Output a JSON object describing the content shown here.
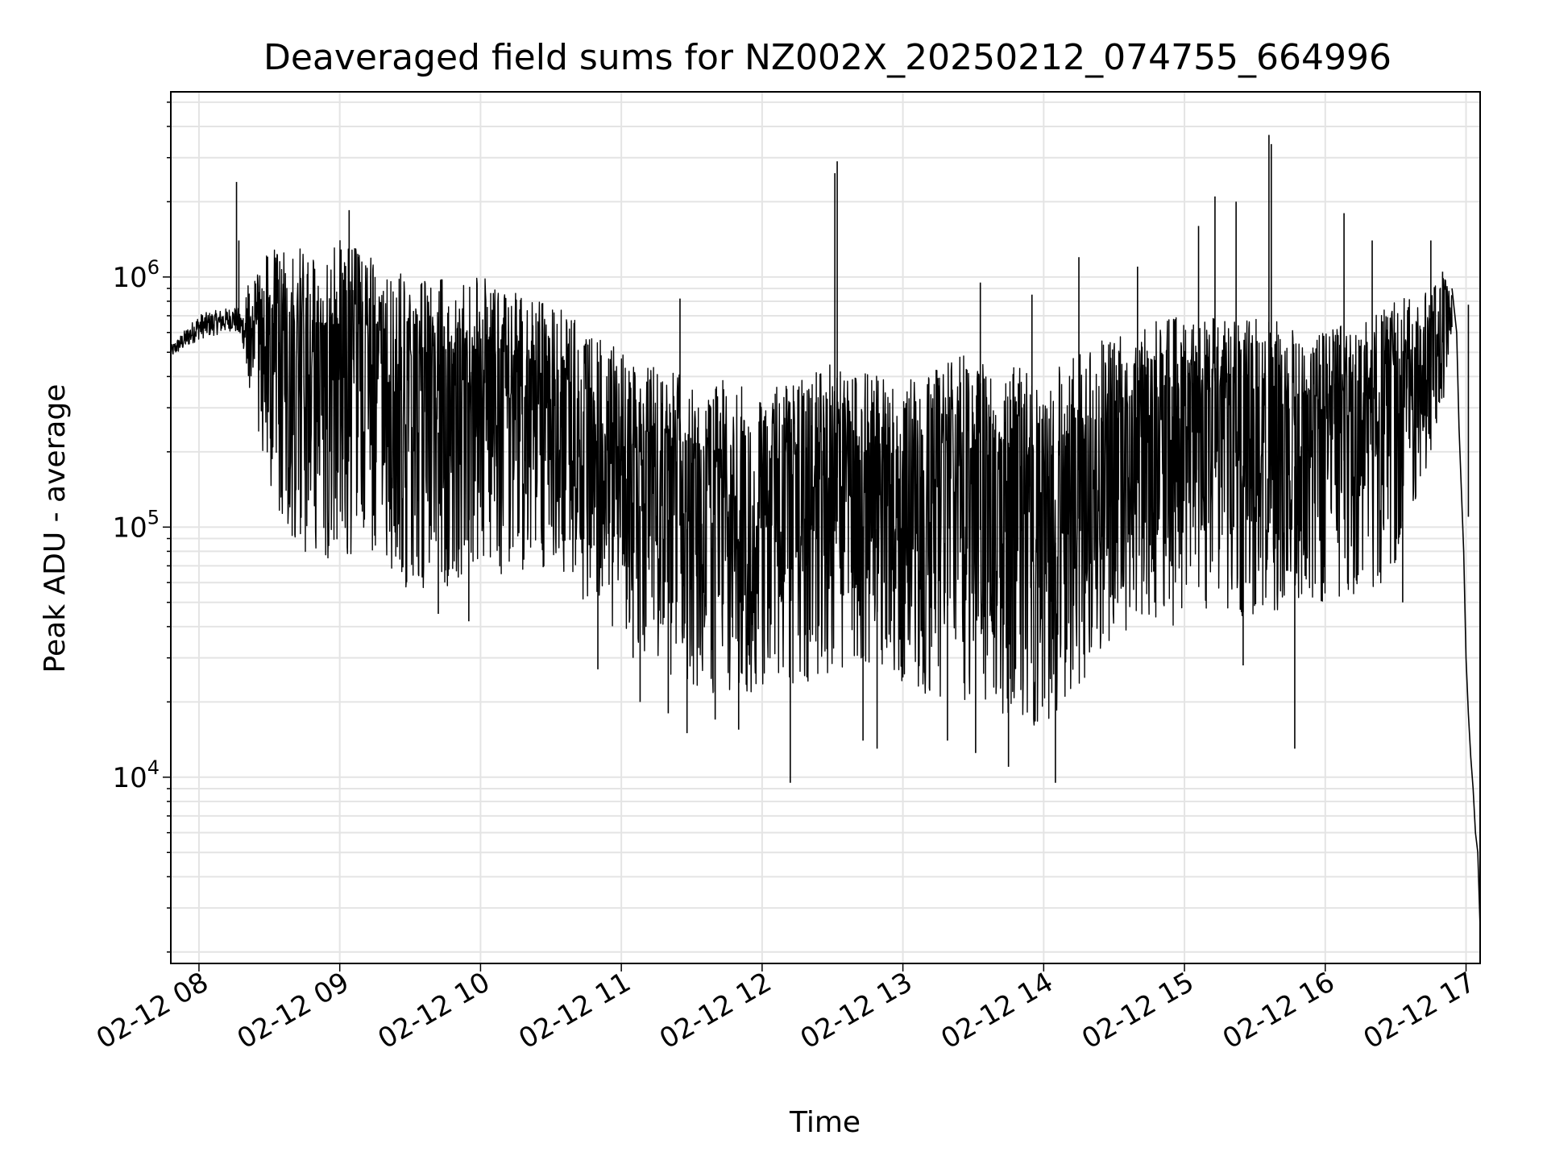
{
  "chart_data": {
    "type": "line",
    "title": "Deaveraged field sums for NZ002X_20250212_074755_664996",
    "xlabel": "Time",
    "ylabel": "Peak ADU - average",
    "yscale": "log",
    "ylim": [
      1800,
      5500000
    ],
    "xlim": [
      "2025-02-12 07:48",
      "2025-02-12 17:06"
    ],
    "grid": true,
    "x_ticks": [
      {
        "value": "2025-02-12 08:00",
        "label": "02-12 08"
      },
      {
        "value": "2025-02-12 09:00",
        "label": "02-12 09"
      },
      {
        "value": "2025-02-12 10:00",
        "label": "02-12 10"
      },
      {
        "value": "2025-02-12 11:00",
        "label": "02-12 11"
      },
      {
        "value": "2025-02-12 12:00",
        "label": "02-12 12"
      },
      {
        "value": "2025-02-12 13:00",
        "label": "02-12 13"
      },
      {
        "value": "2025-02-12 14:00",
        "label": "02-12 14"
      },
      {
        "value": "2025-02-12 15:00",
        "label": "02-12 15"
      },
      {
        "value": "2025-02-12 16:00",
        "label": "02-12 16"
      },
      {
        "value": "2025-02-12 17:00",
        "label": "02-12 17"
      }
    ],
    "y_ticks": [
      {
        "value": 10000,
        "base": "10",
        "exp": "4"
      },
      {
        "value": 100000,
        "base": "10",
        "exp": "5"
      },
      {
        "value": 1000000,
        "base": "10",
        "exp": "6"
      }
    ],
    "series": [
      {
        "color": "#000000",
        "envelope": [
          {
            "x": "2025-02-12 07:48",
            "low": 450000,
            "high": 560000
          },
          {
            "x": "2025-02-12 08:00",
            "low": 500000,
            "high": 800000
          },
          {
            "x": "2025-02-12 08:15",
            "low": 550000,
            "high": 850000
          },
          {
            "x": "2025-02-12 08:20",
            "low": 400000,
            "high": 900000
          },
          {
            "x": "2025-02-12 08:30",
            "low": 150000,
            "high": 1300000
          },
          {
            "x": "2025-02-12 08:45",
            "low": 60000,
            "high": 1300000
          },
          {
            "x": "2025-02-12 09:00",
            "low": 75000,
            "high": 1400000
          },
          {
            "x": "2025-02-12 09:15",
            "low": 80000,
            "high": 1200000
          },
          {
            "x": "2025-02-12 09:30",
            "low": 55000,
            "high": 1000000
          },
          {
            "x": "2025-02-12 10:00",
            "low": 60000,
            "high": 1000000
          },
          {
            "x": "2025-02-12 10:30",
            "low": 70000,
            "high": 800000
          },
          {
            "x": "2025-02-12 11:00",
            "low": 35000,
            "high": 500000
          },
          {
            "x": "2025-02-12 11:30",
            "low": 22000,
            "high": 420000
          },
          {
            "x": "2025-02-12 12:00",
            "low": 20000,
            "high": 350000
          },
          {
            "x": "2025-02-12 12:30",
            "low": 25000,
            "high": 450000
          },
          {
            "x": "2025-02-12 13:00",
            "low": 22000,
            "high": 400000
          },
          {
            "x": "2025-02-12 13:30",
            "low": 20000,
            "high": 500000
          },
          {
            "x": "2025-02-12 14:00",
            "low": 15000,
            "high": 400000
          },
          {
            "x": "2025-02-12 14:30",
            "low": 35000,
            "high": 650000
          },
          {
            "x": "2025-02-12 15:00",
            "low": 40000,
            "high": 700000
          },
          {
            "x": "2025-02-12 15:30",
            "low": 45000,
            "high": 700000
          },
          {
            "x": "2025-02-12 16:00",
            "low": 50000,
            "high": 600000
          },
          {
            "x": "2025-02-12 16:30",
            "low": 60000,
            "high": 800000
          },
          {
            "x": "2025-02-12 16:50",
            "low": 300000,
            "high": 1000000
          },
          {
            "x": "2025-02-12 16:55",
            "low": 600000,
            "high": 1000000
          }
        ],
        "spikes": [
          {
            "x": "2025-02-12 08:16",
            "y": 2400000
          },
          {
            "x": "2025-02-12 08:17",
            "y": 1400000
          },
          {
            "x": "2025-02-12 09:04",
            "y": 1850000
          },
          {
            "x": "2025-02-12 09:42",
            "y": 45000
          },
          {
            "x": "2025-02-12 09:55",
            "y": 42000
          },
          {
            "x": "2025-02-12 10:50",
            "y": 27000
          },
          {
            "x": "2025-02-12 11:05",
            "y": 30000
          },
          {
            "x": "2025-02-12 11:08",
            "y": 20000
          },
          {
            "x": "2025-02-12 11:20",
            "y": 18000
          },
          {
            "x": "2025-02-12 11:25",
            "y": 820000
          },
          {
            "x": "2025-02-12 11:28",
            "y": 15000
          },
          {
            "x": "2025-02-12 11:40",
            "y": 17000
          },
          {
            "x": "2025-02-12 11:50",
            "y": 15500
          },
          {
            "x": "2025-02-12 12:12",
            "y": 9500
          },
          {
            "x": "2025-02-12 12:31",
            "y": 2600000
          },
          {
            "x": "2025-02-12 12:32",
            "y": 2900000
          },
          {
            "x": "2025-02-12 12:43",
            "y": 14000
          },
          {
            "x": "2025-02-12 12:49",
            "y": 13000
          },
          {
            "x": "2025-02-12 13:19",
            "y": 14000
          },
          {
            "x": "2025-02-12 13:31",
            "y": 12500
          },
          {
            "x": "2025-02-12 13:33",
            "y": 950000
          },
          {
            "x": "2025-02-12 13:45",
            "y": 11000
          },
          {
            "x": "2025-02-12 13:55",
            "y": 850000
          },
          {
            "x": "2025-02-12 14:05",
            "y": 9500
          },
          {
            "x": "2025-02-12 14:15",
            "y": 1200000
          },
          {
            "x": "2025-02-12 14:40",
            "y": 1100000
          },
          {
            "x": "2025-02-12 15:06",
            "y": 1600000
          },
          {
            "x": "2025-02-12 15:13",
            "y": 2100000
          },
          {
            "x": "2025-02-12 15:22",
            "y": 2000000
          },
          {
            "x": "2025-02-12 15:25",
            "y": 28000
          },
          {
            "x": "2025-02-12 15:36",
            "y": 3700000
          },
          {
            "x": "2025-02-12 15:37",
            "y": 3400000
          },
          {
            "x": "2025-02-12 15:47",
            "y": 13000
          },
          {
            "x": "2025-02-12 16:08",
            "y": 1800000
          },
          {
            "x": "2025-02-12 16:20",
            "y": 1400000
          },
          {
            "x": "2025-02-12 16:33",
            "y": 50000
          },
          {
            "x": "2025-02-12 16:45",
            "y": 1400000
          },
          {
            "x": "2025-02-12 16:50",
            "y": 1050000
          },
          {
            "x": "2025-02-12 17:01",
            "y": 110000
          }
        ],
        "tail": [
          {
            "x": "2025-02-12 16:54",
            "y": 900000
          },
          {
            "x": "2025-02-12 16:56",
            "y": 600000
          },
          {
            "x": "2025-02-12 16:57",
            "y": 250000
          },
          {
            "x": "2025-02-12 16:59",
            "y": 80000
          },
          {
            "x": "2025-02-12 17:00",
            "y": 30000
          },
          {
            "x": "2025-02-12 17:01",
            "y": 18000
          },
          {
            "x": "2025-02-12 17:02",
            "y": 12000
          },
          {
            "x": "2025-02-12 17:03",
            "y": 9000
          },
          {
            "x": "2025-02-12 17:04",
            "y": 6000
          },
          {
            "x": "2025-02-12 17:05",
            "y": 5000
          },
          {
            "x": "2025-02-12 17:06",
            "y": 2500
          }
        ]
      }
    ]
  }
}
